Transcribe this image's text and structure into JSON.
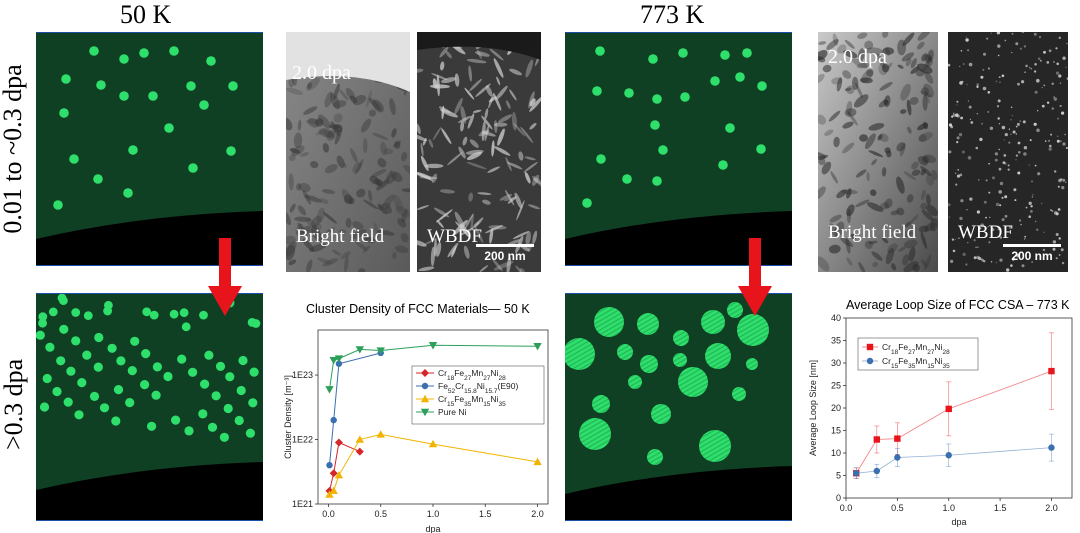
{
  "columns": {
    "low_temp": "50 K",
    "high_temp": "773 K"
  },
  "rows": {
    "top": "0.01 to ~0.3 dpa",
    "bottom": ">0.3 dpa"
  },
  "tem": {
    "dose": "2.0 dpa",
    "bright_field": "Bright field",
    "wbdf": "WBDF",
    "scale": "200 nm"
  },
  "colors": {
    "matrix": "#0f4023",
    "defect": "#2ee06b",
    "arrow": "#e8141c",
    "boundary": "#000000"
  },
  "chart_data": [
    {
      "type": "line",
      "title": "Cluster Density of FCC Materials— 50 K",
      "xlabel": "dpa",
      "ylabel": "Cluster Density [m⁻³]",
      "xlim": [
        -0.1,
        2.1
      ],
      "ylim": [
        1e+21,
        5e+23
      ],
      "yscale": "log",
      "x_ticks": [
        "0.0",
        "0.5",
        "1.0",
        "1.5",
        "2.0"
      ],
      "y_ticks": [
        "1E21",
        "1E22",
        "1E23"
      ],
      "legend": "right",
      "series": [
        {
          "name": "Cr18Fe27Mn27Ni28",
          "color": "#d62728",
          "marker": "diamond",
          "x": [
            0.01,
            0.05,
            0.1,
            0.3
          ],
          "y": [
            1.6e+21,
            3e+21,
            9e+21,
            6.5e+21
          ]
        },
        {
          "name": "Fe52Cr15.8Ni15.7(E90)",
          "color": "#3a6fb0",
          "marker": "circle",
          "x": [
            0.01,
            0.05,
            0.1,
            0.5
          ],
          "y": [
            4e+21,
            2e+22,
            1.5e+23,
            2.2e+23
          ]
        },
        {
          "name": "Cr15Fe35Mn15Ni35",
          "color": "#f2b400",
          "marker": "triangle",
          "x": [
            0.01,
            0.05,
            0.1,
            0.3,
            0.5,
            1.0,
            2.0
          ],
          "y": [
            1.4e+21,
            1.6e+21,
            2.8e+21,
            1e+22,
            1.2e+22,
            8.5e+21,
            4.5e+21
          ]
        },
        {
          "name": "Pure Ni",
          "color": "#2ca05a",
          "marker": "triangle-down",
          "x": [
            0.01,
            0.05,
            0.1,
            0.3,
            0.5,
            1.0,
            2.0
          ],
          "y": [
            6e+22,
            1.7e+23,
            1.8e+23,
            2.5e+23,
            2.4e+23,
            2.9e+23,
            2.8e+23
          ]
        }
      ]
    },
    {
      "type": "line",
      "title": "Average Loop Size of FCC CSA – 773 K",
      "xlabel": "dpa",
      "ylabel": "Average Loop Size [nm]",
      "xlim": [
        0,
        2.2
      ],
      "ylim": [
        0,
        40
      ],
      "x_ticks": [
        "0.0",
        "0.5",
        "1.0",
        "1.5",
        "2.0"
      ],
      "y_ticks": [
        "0",
        "5",
        "10",
        "15",
        "20",
        "25",
        "30",
        "35",
        "40"
      ],
      "legend": "top-left",
      "series": [
        {
          "name": "Cr18Fe27Mn27Ni28",
          "color": "#e8141c",
          "marker": "square",
          "x": [
            0.1,
            0.3,
            0.5,
            1.0,
            2.0
          ],
          "y": [
            5.5,
            13,
            13.2,
            19.8,
            28.2
          ],
          "err": [
            1.2,
            3,
            3.5,
            6,
            8.5
          ]
        },
        {
          "name": "Cr15Fe35Mn15Ni35",
          "color": "#3a6fb0",
          "marker": "circle",
          "x": [
            0.1,
            0.3,
            0.5,
            1.0,
            2.0
          ],
          "y": [
            5.5,
            6,
            9,
            9.5,
            11.2
          ],
          "err": [
            1.2,
            1.5,
            2,
            2.5,
            3
          ]
        }
      ]
    }
  ]
}
